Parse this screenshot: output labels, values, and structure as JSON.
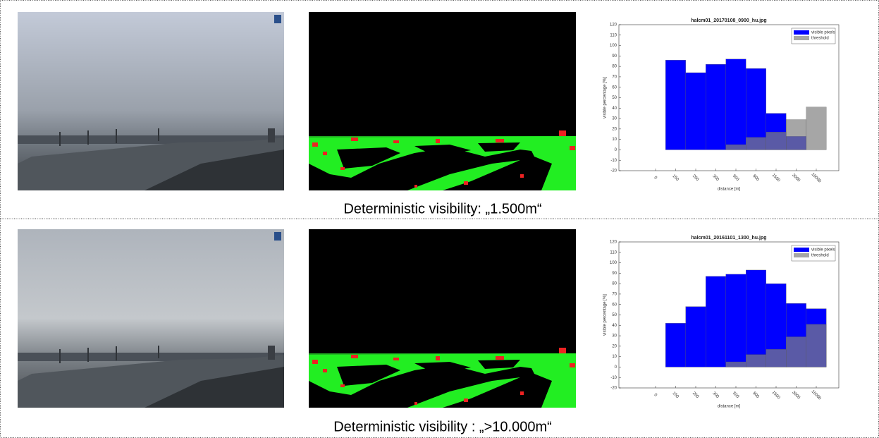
{
  "chart_data": [
    {
      "type": "bar",
      "title": "halcm01_20170108_0900_hu.jpg",
      "xlabel": "distance [m]",
      "ylabel": "visible percentage [%]",
      "categories": [
        "0",
        "150",
        "200",
        "300",
        "500",
        "800",
        "1500",
        "3000",
        "10000"
      ],
      "series": [
        {
          "name": "visible pixels",
          "color": "#0000ff",
          "opacity": 1,
          "values": [
            0,
            86,
            74,
            82,
            87,
            78,
            35,
            13,
            0
          ]
        },
        {
          "name": "threshold",
          "color": "#808080",
          "opacity": 0.7,
          "values": [
            0,
            0,
            0,
            0,
            5,
            12,
            17,
            29,
            41
          ]
        }
      ],
      "ylim": [
        -20,
        120
      ],
      "yticks": [
        -20,
        -10,
        0,
        10,
        20,
        30,
        40,
        50,
        60,
        70,
        80,
        90,
        100,
        110,
        120
      ],
      "legend": "upper right",
      "grid": false
    },
    {
      "type": "bar",
      "title": "halcm01_20161101_1300_hu.jpg",
      "xlabel": "distance [m]",
      "ylabel": "visible percentage [%]",
      "categories": [
        "0",
        "150",
        "200",
        "300",
        "500",
        "800",
        "1500",
        "3000",
        "10000"
      ],
      "series": [
        {
          "name": "visible pixels",
          "color": "#0000ff",
          "opacity": 1,
          "values": [
            0,
            42,
            58,
            87,
            89,
            93,
            80,
            61,
            56
          ]
        },
        {
          "name": "threshold",
          "color": "#808080",
          "opacity": 0.7,
          "values": [
            0,
            0,
            0,
            0,
            5,
            12,
            17,
            29,
            41
          ]
        }
      ],
      "ylim": [
        -20,
        120
      ],
      "yticks": [
        -20,
        -10,
        0,
        10,
        20,
        30,
        40,
        50,
        60,
        70,
        80,
        90,
        100,
        110,
        120
      ],
      "legend": "upper right",
      "grid": false
    }
  ],
  "captions": [
    "Deterministic visibility: „1.500m“",
    "Deterministic visibility : „>10.000m“"
  ]
}
